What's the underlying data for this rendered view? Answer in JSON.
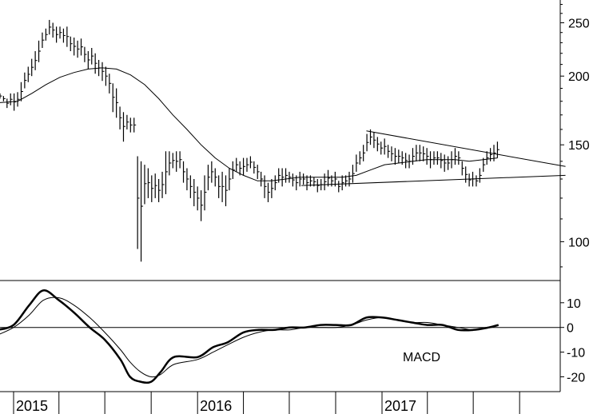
{
  "chart_data": {
    "type": "ohlc",
    "price_panel": {
      "scale": "log",
      "ylim": [
        85,
        275
      ],
      "y_ticks": [
        100,
        150,
        200,
        250
      ],
      "y_tick_labels": [
        "100",
        "150",
        "200",
        "250"
      ]
    },
    "x_axis": {
      "range": [
        "2014-12-01",
        "2017-12-31"
      ],
      "year_labels": [
        {
          "date": "2015-01-01",
          "label": "2015"
        },
        {
          "date": "2016-01-01",
          "label": "2016"
        },
        {
          "date": "2017-01-01",
          "label": "2017"
        }
      ]
    },
    "price_bars": [
      [
        "2014-12-05",
        182,
        186
      ],
      [
        "2014-12-12",
        180,
        184
      ],
      [
        "2014-12-19",
        175,
        182
      ],
      [
        "2014-12-26",
        177,
        186
      ],
      [
        "2015-01-02",
        173,
        186
      ],
      [
        "2015-01-09",
        176,
        187
      ],
      [
        "2015-01-16",
        180,
        195
      ],
      [
        "2015-01-23",
        190,
        203
      ],
      [
        "2015-01-30",
        195,
        208
      ],
      [
        "2015-02-06",
        200,
        215
      ],
      [
        "2015-02-13",
        205,
        222
      ],
      [
        "2015-02-20",
        212,
        232
      ],
      [
        "2015-02-27",
        225,
        240
      ],
      [
        "2015-03-06",
        232,
        244
      ],
      [
        "2015-03-13",
        238,
        253
      ],
      [
        "2015-03-20",
        235,
        250
      ],
      [
        "2015-03-27",
        230,
        246
      ],
      [
        "2015-04-03",
        234,
        246
      ],
      [
        "2015-04-10",
        230,
        244
      ],
      [
        "2015-04-17",
        226,
        246
      ],
      [
        "2015-04-24",
        222,
        236
      ],
      [
        "2015-05-01",
        218,
        235
      ],
      [
        "2015-05-08",
        216,
        232
      ],
      [
        "2015-05-15",
        218,
        234
      ],
      [
        "2015-05-22",
        212,
        226
      ],
      [
        "2015-05-29",
        206,
        222
      ],
      [
        "2015-06-05",
        210,
        225
      ],
      [
        "2015-06-12",
        202,
        220
      ],
      [
        "2015-06-19",
        200,
        214
      ],
      [
        "2015-06-26",
        196,
        212
      ],
      [
        "2015-07-03",
        192,
        208
      ],
      [
        "2015-07-10",
        186,
        202
      ],
      [
        "2015-07-17",
        172,
        194
      ],
      [
        "2015-07-24",
        168,
        190
      ],
      [
        "2015-07-31",
        160,
        176
      ],
      [
        "2015-08-07",
        152,
        172
      ],
      [
        "2015-08-14",
        160,
        170
      ],
      [
        "2015-08-21",
        158,
        168
      ],
      [
        "2015-08-28",
        158,
        168
      ],
      [
        "2015-09-04",
        97,
        143
      ],
      [
        "2015-09-11",
        92,
        140
      ],
      [
        "2015-09-18",
        117,
        138
      ],
      [
        "2015-09-25",
        120,
        136
      ],
      [
        "2015-10-02",
        118,
        132
      ],
      [
        "2015-10-09",
        120,
        133
      ],
      [
        "2015-10-16",
        118,
        130
      ],
      [
        "2015-10-23",
        120,
        134
      ],
      [
        "2015-10-30",
        122,
        146
      ],
      [
        "2015-11-06",
        132,
        146
      ],
      [
        "2015-11-13",
        136,
        145
      ],
      [
        "2015-11-20",
        134,
        146
      ],
      [
        "2015-11-27",
        136,
        146
      ],
      [
        "2015-12-04",
        128,
        140
      ],
      [
        "2015-12-11",
        124,
        136
      ],
      [
        "2015-12-18",
        120,
        132
      ],
      [
        "2015-12-25",
        116,
        130
      ],
      [
        "2016-01-01",
        114,
        126
      ],
      [
        "2016-01-08",
        109,
        124
      ],
      [
        "2016-01-15",
        114,
        132
      ],
      [
        "2016-01-22",
        124,
        138
      ],
      [
        "2016-01-29",
        128,
        140
      ],
      [
        "2016-02-05",
        126,
        136
      ],
      [
        "2016-02-12",
        120,
        132
      ],
      [
        "2016-02-19",
        118,
        134
      ],
      [
        "2016-02-26",
        116,
        132
      ],
      [
        "2016-03-04",
        124,
        136
      ],
      [
        "2016-03-11",
        130,
        140
      ],
      [
        "2016-03-18",
        134,
        142
      ],
      [
        "2016-03-25",
        132,
        140
      ],
      [
        "2016-04-01",
        132,
        142
      ],
      [
        "2016-04-08",
        134,
        142
      ],
      [
        "2016-04-15",
        136,
        143
      ],
      [
        "2016-04-22",
        133,
        140
      ],
      [
        "2016-04-29",
        130,
        138
      ],
      [
        "2016-05-06",
        126,
        134
      ],
      [
        "2016-05-13",
        120,
        132
      ],
      [
        "2016-05-20",
        118,
        128
      ],
      [
        "2016-05-27",
        120,
        130
      ],
      [
        "2016-06-03",
        124,
        132
      ],
      [
        "2016-06-10",
        128,
        136
      ],
      [
        "2016-06-17",
        126,
        136
      ],
      [
        "2016-06-24",
        128,
        136
      ],
      [
        "2016-07-01",
        128,
        134
      ],
      [
        "2016-07-08",
        126,
        133
      ],
      [
        "2016-07-15",
        124,
        132
      ],
      [
        "2016-07-22",
        126,
        134
      ],
      [
        "2016-07-29",
        127,
        133
      ],
      [
        "2016-08-05",
        124,
        132
      ],
      [
        "2016-08-12",
        126,
        132
      ],
      [
        "2016-08-19",
        126,
        131
      ],
      [
        "2016-08-26",
        123,
        130
      ],
      [
        "2016-09-02",
        124,
        130
      ],
      [
        "2016-09-09",
        124,
        133
      ],
      [
        "2016-09-16",
        126,
        135
      ],
      [
        "2016-09-23",
        126,
        132
      ],
      [
        "2016-09-30",
        126,
        134
      ],
      [
        "2016-10-07",
        123,
        129
      ],
      [
        "2016-10-14",
        124,
        132
      ],
      [
        "2016-10-21",
        126,
        132
      ],
      [
        "2016-10-28",
        126,
        134
      ],
      [
        "2016-11-04",
        128,
        138
      ],
      [
        "2016-11-11",
        134,
        144
      ],
      [
        "2016-11-18",
        138,
        146
      ],
      [
        "2016-11-25",
        140,
        150
      ],
      [
        "2016-12-02",
        146,
        157
      ],
      [
        "2016-12-09",
        150,
        160
      ],
      [
        "2016-12-16",
        148,
        158
      ],
      [
        "2016-12-23",
        146,
        155
      ],
      [
        "2016-12-30",
        144,
        152
      ],
      [
        "2017-01-06",
        144,
        154
      ],
      [
        "2017-01-13",
        142,
        150
      ],
      [
        "2017-01-20",
        140,
        149
      ],
      [
        "2017-01-27",
        138,
        148
      ],
      [
        "2017-02-03",
        139,
        147
      ],
      [
        "2017-02-10",
        138,
        146
      ],
      [
        "2017-02-17",
        136,
        145
      ],
      [
        "2017-02-24",
        136,
        144
      ],
      [
        "2017-03-03",
        138,
        148
      ],
      [
        "2017-03-10",
        140,
        150
      ],
      [
        "2017-03-17",
        140,
        150
      ],
      [
        "2017-03-24",
        140,
        149
      ],
      [
        "2017-03-31",
        138,
        148
      ],
      [
        "2017-04-07",
        136,
        146
      ],
      [
        "2017-04-14",
        138,
        146
      ],
      [
        "2017-04-21",
        138,
        146
      ],
      [
        "2017-04-28",
        136,
        145
      ],
      [
        "2017-05-05",
        134,
        144
      ],
      [
        "2017-05-12",
        135,
        143
      ],
      [
        "2017-05-19",
        136,
        146
      ],
      [
        "2017-05-26",
        138,
        148
      ],
      [
        "2017-06-02",
        138,
        146
      ],
      [
        "2017-06-09",
        132,
        140
      ],
      [
        "2017-06-16",
        128,
        137
      ],
      [
        "2017-06-23",
        126,
        133
      ],
      [
        "2017-06-30",
        126,
        134
      ],
      [
        "2017-07-07",
        126,
        132
      ],
      [
        "2017-07-14",
        128,
        136
      ],
      [
        "2017-07-21",
        134,
        142
      ],
      [
        "2017-07-28",
        138,
        146
      ],
      [
        "2017-08-04",
        140,
        148
      ],
      [
        "2017-08-11",
        140,
        150
      ],
      [
        "2017-08-18",
        142,
        152
      ]
    ],
    "moving_average": [
      [
        "2014-12-05",
        179
      ],
      [
        "2015-01-09",
        180
      ],
      [
        "2015-02-06",
        186
      ],
      [
        "2015-03-06",
        193
      ],
      [
        "2015-04-03",
        199
      ],
      [
        "2015-05-01",
        203
      ],
      [
        "2015-05-29",
        206
      ],
      [
        "2015-06-26",
        207
      ],
      [
        "2015-07-24",
        206
      ],
      [
        "2015-08-21",
        201
      ],
      [
        "2015-09-18",
        193
      ],
      [
        "2015-10-16",
        182
      ],
      [
        "2015-11-13",
        170
      ],
      [
        "2015-12-11",
        160
      ],
      [
        "2016-01-08",
        150
      ],
      [
        "2016-02-05",
        142
      ],
      [
        "2016-03-04",
        136
      ],
      [
        "2016-04-01",
        132
      ],
      [
        "2016-04-29",
        129
      ],
      [
        "2016-05-27",
        129
      ],
      [
        "2016-06-24",
        130
      ],
      [
        "2016-07-22",
        131
      ],
      [
        "2016-08-19",
        131
      ],
      [
        "2016-09-16",
        131
      ],
      [
        "2016-10-14",
        131
      ],
      [
        "2016-11-11",
        132
      ],
      [
        "2016-12-09",
        135
      ],
      [
        "2017-01-06",
        138
      ],
      [
        "2017-02-03",
        139
      ],
      [
        "2017-03-03",
        140
      ],
      [
        "2017-03-31",
        141
      ],
      [
        "2017-04-28",
        141
      ],
      [
        "2017-05-26",
        141
      ],
      [
        "2017-06-23",
        140
      ],
      [
        "2017-07-21",
        141
      ],
      [
        "2017-08-18",
        142
      ]
    ],
    "trendlines": [
      [
        [
          "2016-07-25",
          126.5
        ],
        [
          "2017-12-31",
          132
        ]
      ],
      [
        [
          "2016-12-01",
          159
        ],
        [
          "2017-12-31",
          137
        ]
      ]
    ],
    "macd_panel": {
      "label": "MACD",
      "ylim": [
        -26,
        19
      ],
      "y_ticks": [
        10,
        0,
        -10,
        -20
      ],
      "y_tick_labels": [
        "10",
        "0",
        "-10",
        "-20"
      ],
      "zero_line": 0,
      "macd": [
        [
          "2014-12-01",
          -1
        ],
        [
          "2015-01-01",
          1
        ],
        [
          "2015-02-01",
          9
        ],
        [
          "2015-03-01",
          15
        ],
        [
          "2015-04-01",
          11
        ],
        [
          "2015-05-01",
          6
        ],
        [
          "2015-06-01",
          0
        ],
        [
          "2015-07-01",
          -5
        ],
        [
          "2015-08-01",
          -13
        ],
        [
          "2015-08-20",
          -20
        ],
        [
          "2015-09-10",
          -22
        ],
        [
          "2015-10-01",
          -22
        ],
        [
          "2015-10-20",
          -18
        ],
        [
          "2015-11-15",
          -12
        ],
        [
          "2016-01-01",
          -12
        ],
        [
          "2016-02-01",
          -8
        ],
        [
          "2016-03-01",
          -6
        ],
        [
          "2016-04-01",
          -2
        ],
        [
          "2016-05-01",
          -1
        ],
        [
          "2016-06-01",
          -1
        ],
        [
          "2016-07-01",
          0
        ],
        [
          "2016-08-01",
          0
        ],
        [
          "2016-09-01",
          1
        ],
        [
          "2016-10-01",
          1
        ],
        [
          "2016-11-01",
          1
        ],
        [
          "2016-12-01",
          4
        ],
        [
          "2017-01-01",
          4
        ],
        [
          "2017-02-01",
          3
        ],
        [
          "2017-03-01",
          2
        ],
        [
          "2017-04-01",
          1
        ],
        [
          "2017-05-01",
          1
        ],
        [
          "2017-06-01",
          -1
        ],
        [
          "2017-07-01",
          -1
        ],
        [
          "2017-08-01",
          0
        ],
        [
          "2017-08-20",
          1
        ]
      ],
      "signal": [
        [
          "2014-12-01",
          -3
        ],
        [
          "2015-01-01",
          0
        ],
        [
          "2015-02-01",
          5
        ],
        [
          "2015-03-01",
          11
        ],
        [
          "2015-04-01",
          12
        ],
        [
          "2015-05-01",
          9
        ],
        [
          "2015-06-01",
          4
        ],
        [
          "2015-07-01",
          -2
        ],
        [
          "2015-08-01",
          -9
        ],
        [
          "2015-08-20",
          -14
        ],
        [
          "2015-09-10",
          -18
        ],
        [
          "2015-10-01",
          -20
        ],
        [
          "2015-10-20",
          -19
        ],
        [
          "2015-11-15",
          -15
        ],
        [
          "2016-01-01",
          -13
        ],
        [
          "2016-02-01",
          -10
        ],
        [
          "2016-03-01",
          -7
        ],
        [
          "2016-04-01",
          -4
        ],
        [
          "2016-05-01",
          -2
        ],
        [
          "2016-06-01",
          -1
        ],
        [
          "2016-07-01",
          -1
        ],
        [
          "2016-08-01",
          0
        ],
        [
          "2016-09-01",
          0
        ],
        [
          "2016-10-01",
          0
        ],
        [
          "2016-11-01",
          1
        ],
        [
          "2016-12-01",
          3
        ],
        [
          "2017-01-01",
          4
        ],
        [
          "2017-02-01",
          3
        ],
        [
          "2017-03-01",
          2
        ],
        [
          "2017-04-01",
          2
        ],
        [
          "2017-05-01",
          1
        ],
        [
          "2017-06-01",
          0
        ],
        [
          "2017-07-01",
          -1
        ],
        [
          "2017-08-01",
          0
        ],
        [
          "2017-08-20",
          1
        ]
      ]
    }
  }
}
